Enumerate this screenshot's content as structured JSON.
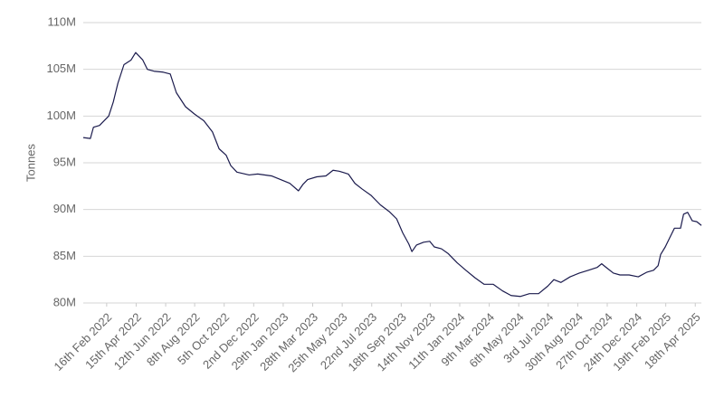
{
  "chart_data": {
    "type": "line",
    "y_label": "Tonnes",
    "color": "#1b1b4d",
    "grid": true,
    "xlim": [
      "2022-01-01",
      "2025-04-30"
    ],
    "ylim": [
      80000000,
      110000000
    ],
    "yticks": [
      {
        "value": 80000000,
        "label": "80M"
      },
      {
        "value": 85000000,
        "label": "85M"
      },
      {
        "value": 90000000,
        "label": "90M"
      },
      {
        "value": 95000000,
        "label": "95M"
      },
      {
        "value": 100000000,
        "label": "100M"
      },
      {
        "value": 105000000,
        "label": "105M"
      },
      {
        "value": 110000000,
        "label": "110M"
      }
    ],
    "xticks": [
      {
        "value": "2022-02-16",
        "label": "16th Feb 2022"
      },
      {
        "value": "2022-04-15",
        "label": "15th Apr 2022"
      },
      {
        "value": "2022-06-12",
        "label": "12th Jun 2022"
      },
      {
        "value": "2022-08-08",
        "label": "8th Aug 2022"
      },
      {
        "value": "2022-10-05",
        "label": "5th Oct 2022"
      },
      {
        "value": "2022-12-02",
        "label": "2nd Dec 2022"
      },
      {
        "value": "2023-01-29",
        "label": "29th Jan 2023"
      },
      {
        "value": "2023-03-28",
        "label": "28th Mar 2023"
      },
      {
        "value": "2023-05-25",
        "label": "25th May 2023"
      },
      {
        "value": "2023-07-22",
        "label": "22nd Jul 2023"
      },
      {
        "value": "2023-09-18",
        "label": "18th Sep 2023"
      },
      {
        "value": "2023-11-14",
        "label": "14th Nov 2023"
      },
      {
        "value": "2024-01-11",
        "label": "11th Jan 2024"
      },
      {
        "value": "2024-03-09",
        "label": "9th Mar 2024"
      },
      {
        "value": "2024-05-06",
        "label": "6th May 2024"
      },
      {
        "value": "2024-07-03",
        "label": "3rd Jul 2024"
      },
      {
        "value": "2024-08-30",
        "label": "30th Aug 2024"
      },
      {
        "value": "2024-10-27",
        "label": "27th Oct 2024"
      },
      {
        "value": "2024-12-24",
        "label": "24th Dec 2024"
      },
      {
        "value": "2025-02-19",
        "label": "19th Feb 2025"
      },
      {
        "value": "2025-04-18",
        "label": "18th Apr 2025"
      }
    ],
    "x": [
      "2022-01-01",
      "2022-01-15",
      "2022-01-21",
      "2022-02-02",
      "2022-02-20",
      "2022-03-01",
      "2022-03-10",
      "2022-03-22",
      "2022-04-05",
      "2022-04-14",
      "2022-04-28",
      "2022-05-07",
      "2022-05-20",
      "2022-06-07",
      "2022-06-21",
      "2022-07-03",
      "2022-07-21",
      "2022-08-08",
      "2022-08-26",
      "2022-09-12",
      "2022-09-25",
      "2022-10-09",
      "2022-10-18",
      "2022-10-30",
      "2022-11-23",
      "2022-12-10",
      "2023-01-06",
      "2023-01-24",
      "2023-02-11",
      "2023-02-28",
      "2023-03-09",
      "2023-03-18",
      "2023-04-05",
      "2023-04-23",
      "2023-05-07",
      "2023-05-19",
      "2023-06-06",
      "2023-06-19",
      "2023-07-03",
      "2023-07-21",
      "2023-08-08",
      "2023-08-25",
      "2023-09-09",
      "2023-09-21",
      "2023-10-03",
      "2023-10-09",
      "2023-10-18",
      "2023-11-01",
      "2023-11-13",
      "2023-11-22",
      "2023-12-06",
      "2023-12-19",
      "2024-01-06",
      "2024-01-23",
      "2024-02-10",
      "2024-02-28",
      "2024-03-17",
      "2024-04-04",
      "2024-04-21",
      "2024-05-09",
      "2024-05-27",
      "2024-06-14",
      "2024-07-02",
      "2024-07-14",
      "2024-07-28",
      "2024-08-15",
      "2024-09-02",
      "2024-09-20",
      "2024-10-07",
      "2024-10-16",
      "2024-10-25",
      "2024-11-08",
      "2024-11-21",
      "2024-12-09",
      "2024-12-27",
      "2025-01-13",
      "2025-01-26",
      "2025-02-04",
      "2025-02-09",
      "2025-02-18",
      "2025-02-27",
      "2025-03-08",
      "2025-03-20",
      "2025-03-26",
      "2025-04-03",
      "2025-04-12",
      "2025-04-21",
      "2025-04-30"
    ],
    "values": [
      97700000,
      97600000,
      98800000,
      99000000,
      100000000,
      101500000,
      103500000,
      105500000,
      106000000,
      106800000,
      106000000,
      105000000,
      104800000,
      104700000,
      104500000,
      102500000,
      101000000,
      100200000,
      99500000,
      98300000,
      96500000,
      95800000,
      94700000,
      94000000,
      93700000,
      93800000,
      93600000,
      93200000,
      92800000,
      92000000,
      92700000,
      93200000,
      93500000,
      93600000,
      94200000,
      94100000,
      93800000,
      92800000,
      92200000,
      91500000,
      90500000,
      89800000,
      89000000,
      87500000,
      86300000,
      85500000,
      86200000,
      86500000,
      86600000,
      86000000,
      85800000,
      85300000,
      84300000,
      83500000,
      82700000,
      82000000,
      82000000,
      81300000,
      80800000,
      80700000,
      81000000,
      81000000,
      81800000,
      82500000,
      82200000,
      82800000,
      83200000,
      83500000,
      83800000,
      84200000,
      83800000,
      83200000,
      83000000,
      83000000,
      82800000,
      83300000,
      83500000,
      84000000,
      85200000,
      86000000,
      87000000,
      88000000,
      88000000,
      89500000,
      89700000,
      88800000,
      88700000,
      88300000
    ]
  }
}
